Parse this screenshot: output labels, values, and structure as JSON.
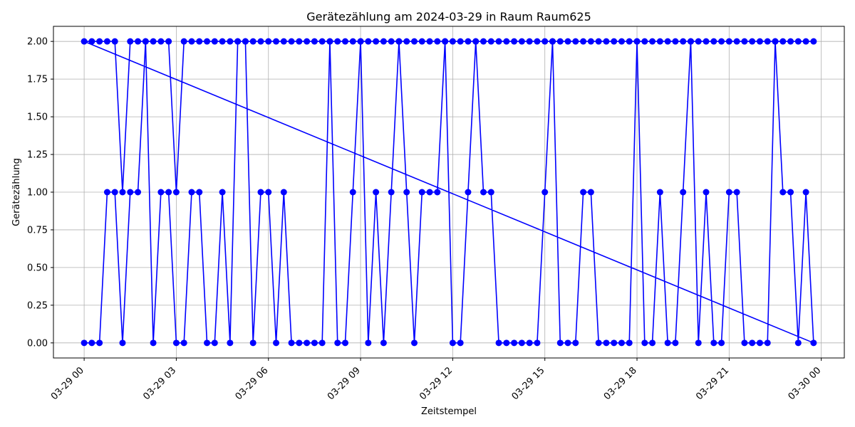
{
  "chart_data": {
    "type": "line",
    "title": "Gerätezählung am 2024-03-29 in Raum Raum625",
    "xlabel": "Zeitstempel",
    "ylabel": "Gerätezählung",
    "ylim": [
      -0.1,
      2.1
    ],
    "yticks": [
      0.0,
      0.25,
      0.5,
      0.75,
      1.0,
      1.25,
      1.5,
      1.75,
      2.0
    ],
    "ytick_labels": [
      "0.00",
      "0.25",
      "0.50",
      "0.75",
      "1.00",
      "1.25",
      "1.50",
      "1.75",
      "2.00"
    ],
    "xlim": [
      "2024-03-28 23:00",
      "2024-03-30 00:45"
    ],
    "xticks": [
      "2024-03-29 00:00",
      "2024-03-29 03:00",
      "2024-03-29 06:00",
      "2024-03-29 09:00",
      "2024-03-29 12:00",
      "2024-03-29 15:00",
      "2024-03-29 18:00",
      "2024-03-29 21:00",
      "2024-03-30 00:00"
    ],
    "xtick_labels": [
      "03-29 00",
      "03-29 03",
      "03-29 06",
      "03-29 09",
      "03-29 12",
      "03-29 15",
      "03-29 18",
      "03-29 21",
      "03-30 00"
    ],
    "grid": true,
    "color": "#0000ff",
    "series": [
      {
        "x": [
          "2024-03-29 00:00",
          "2024-03-29 00:15",
          "2024-03-29 00:30",
          "2024-03-29 00:45",
          "2024-03-29 01:00",
          "2024-03-29 01:15",
          "2024-03-29 01:30",
          "2024-03-29 01:45",
          "2024-03-29 02:00",
          "2024-03-29 02:15",
          "2024-03-29 02:30",
          "2024-03-29 02:45",
          "2024-03-29 03:00",
          "2024-03-29 03:15",
          "2024-03-29 03:30",
          "2024-03-29 03:45",
          "2024-03-29 04:00",
          "2024-03-29 04:15",
          "2024-03-29 04:30",
          "2024-03-29 04:45",
          "2024-03-29 05:00",
          "2024-03-29 05:15",
          "2024-03-29 05:30",
          "2024-03-29 05:45",
          "2024-03-29 06:00",
          "2024-03-29 06:15",
          "2024-03-29 06:30",
          "2024-03-29 06:45",
          "2024-03-29 07:00",
          "2024-03-29 07:15",
          "2024-03-29 07:30",
          "2024-03-29 07:45",
          "2024-03-29 08:00",
          "2024-03-29 08:15",
          "2024-03-29 08:30",
          "2024-03-29 08:45",
          "2024-03-29 09:00",
          "2024-03-29 09:15",
          "2024-03-29 09:30",
          "2024-03-29 09:45",
          "2024-03-29 10:00",
          "2024-03-29 10:15",
          "2024-03-29 10:30",
          "2024-03-29 10:45",
          "2024-03-29 11:00",
          "2024-03-29 11:15",
          "2024-03-29 11:30",
          "2024-03-29 11:45",
          "2024-03-29 12:00",
          "2024-03-29 12:15",
          "2024-03-29 12:30",
          "2024-03-29 12:45",
          "2024-03-29 13:00",
          "2024-03-29 13:15",
          "2024-03-29 13:30",
          "2024-03-29 13:45",
          "2024-03-29 14:00",
          "2024-03-29 14:15",
          "2024-03-29 14:30",
          "2024-03-29 14:45",
          "2024-03-29 15:00",
          "2024-03-29 15:15",
          "2024-03-29 15:30",
          "2024-03-29 15:45",
          "2024-03-29 16:00",
          "2024-03-29 16:15",
          "2024-03-29 16:30",
          "2024-03-29 16:45",
          "2024-03-29 17:00",
          "2024-03-29 17:15",
          "2024-03-29 17:30",
          "2024-03-29 17:45",
          "2024-03-29 18:00",
          "2024-03-29 18:15",
          "2024-03-29 18:30",
          "2024-03-29 18:45",
          "2024-03-29 19:00",
          "2024-03-29 19:15",
          "2024-03-29 19:30",
          "2024-03-29 19:45",
          "2024-03-29 20:00",
          "2024-03-29 20:15",
          "2024-03-29 20:30",
          "2024-03-29 20:45",
          "2024-03-29 21:00",
          "2024-03-29 21:15",
          "2024-03-29 21:30",
          "2024-03-29 21:45",
          "2024-03-29 22:00",
          "2024-03-29 22:15",
          "2024-03-29 22:30",
          "2024-03-29 22:45",
          "2024-03-29 23:00",
          "2024-03-29 23:15",
          "2024-03-29 23:30",
          "2024-03-29 23:45",
          "2024-03-29 00:00",
          "2024-03-29 00:15",
          "2024-03-29 00:30",
          "2024-03-29 00:45",
          "2024-03-29 01:00",
          "2024-03-29 01:15",
          "2024-03-29 01:30",
          "2024-03-29 01:45",
          "2024-03-29 02:00",
          "2024-03-29 02:15",
          "2024-03-29 02:30",
          "2024-03-29 02:45",
          "2024-03-29 03:00",
          "2024-03-29 03:15",
          "2024-03-29 03:30",
          "2024-03-29 03:45",
          "2024-03-29 04:00",
          "2024-03-29 04:15",
          "2024-03-29 04:30",
          "2024-03-29 04:45",
          "2024-03-29 05:00",
          "2024-03-29 05:15",
          "2024-03-29 05:30",
          "2024-03-29 05:45",
          "2024-03-29 06:00",
          "2024-03-29 06:15",
          "2024-03-29 06:30",
          "2024-03-29 06:45",
          "2024-03-29 07:00",
          "2024-03-29 07:15",
          "2024-03-29 07:30",
          "2024-03-29 07:45",
          "2024-03-29 08:00",
          "2024-03-29 08:15",
          "2024-03-29 08:30",
          "2024-03-29 08:45",
          "2024-03-29 09:00",
          "2024-03-29 09:15",
          "2024-03-29 09:30",
          "2024-03-29 09:45",
          "2024-03-29 10:00",
          "2024-03-29 10:15",
          "2024-03-29 10:30",
          "2024-03-29 10:45",
          "2024-03-29 11:00",
          "2024-03-29 11:15",
          "2024-03-29 11:30",
          "2024-03-29 11:45",
          "2024-03-29 12:00",
          "2024-03-29 12:15",
          "2024-03-29 12:30",
          "2024-03-29 12:45",
          "2024-03-29 13:00",
          "2024-03-29 13:15",
          "2024-03-29 13:30",
          "2024-03-29 13:45",
          "2024-03-29 14:00",
          "2024-03-29 14:15",
          "2024-03-29 14:30",
          "2024-03-29 14:45",
          "2024-03-29 15:00",
          "2024-03-29 15:15",
          "2024-03-29 15:30",
          "2024-03-29 15:45",
          "2024-03-29 16:00",
          "2024-03-29 16:15",
          "2024-03-29 16:30",
          "2024-03-29 16:45",
          "2024-03-29 17:00",
          "2024-03-29 17:15",
          "2024-03-29 17:30",
          "2024-03-29 17:45",
          "2024-03-29 18:00",
          "2024-03-29 18:15",
          "2024-03-29 18:30",
          "2024-03-29 18:45",
          "2024-03-29 19:00",
          "2024-03-29 19:15",
          "2024-03-29 19:30",
          "2024-03-29 19:45",
          "2024-03-29 20:00",
          "2024-03-29 20:15",
          "2024-03-29 20:30",
          "2024-03-29 20:45",
          "2024-03-29 21:00",
          "2024-03-29 21:15",
          "2024-03-29 21:30",
          "2024-03-29 21:45",
          "2024-03-29 22:00",
          "2024-03-29 22:15",
          "2024-03-29 22:30",
          "2024-03-29 22:45",
          "2024-03-29 23:00",
          "2024-03-29 23:15",
          "2024-03-29 23:30",
          "2024-03-29 23:45"
        ],
        "y": [
          0,
          0,
          0,
          1,
          1,
          0,
          1,
          1,
          2,
          0,
          1,
          1,
          0,
          0,
          1,
          1,
          0,
          0,
          1,
          0,
          2,
          2,
          0,
          1,
          1,
          0,
          1,
          0,
          0,
          0,
          0,
          0,
          2,
          0,
          0,
          1,
          2,
          0,
          1,
          0,
          1,
          2,
          1,
          0,
          1,
          1,
          1,
          2,
          0,
          0,
          1,
          2,
          1,
          1,
          0,
          0,
          0,
          0,
          0,
          0,
          1,
          2,
          0,
          0,
          0,
          1,
          1,
          0,
          0,
          0,
          0,
          0,
          2,
          0,
          0,
          1,
          0,
          0,
          1,
          2,
          0,
          1,
          0,
          0,
          1,
          1,
          0,
          0,
          0,
          0,
          2,
          1,
          1,
          0,
          1,
          0,
          2,
          2,
          2,
          2,
          2,
          1,
          2,
          2,
          2,
          2,
          2,
          2,
          1,
          2,
          2,
          2,
          2,
          2,
          2,
          2,
          2,
          2,
          2,
          2,
          2,
          2,
          2,
          2,
          2,
          2,
          2,
          2,
          2,
          2,
          2,
          2,
          2,
          2,
          2,
          2,
          2,
          2,
          2,
          2,
          2,
          2,
          2,
          2,
          2,
          2,
          2,
          2,
          2,
          2,
          2,
          2,
          2,
          2,
          2,
          2,
          2,
          2,
          2,
          2,
          2,
          2,
          2,
          2,
          2,
          2,
          2,
          2,
          2,
          2,
          2,
          2,
          2,
          2,
          2,
          2,
          2,
          2,
          2,
          2,
          2,
          2,
          2,
          2,
          2,
          2,
          2,
          2,
          2,
          2,
          2,
          2
        ]
      }
    ]
  }
}
